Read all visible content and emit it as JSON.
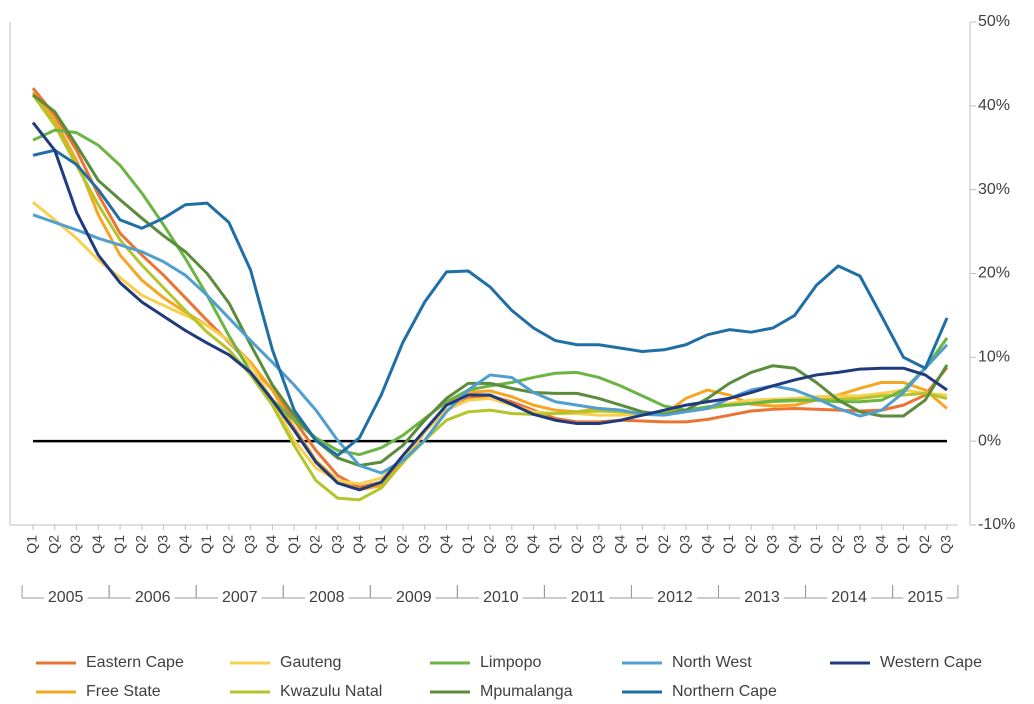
{
  "chart_data": {
    "type": "line",
    "categories": [
      "Q1",
      "Q2",
      "Q3",
      "Q4",
      "Q1",
      "Q2",
      "Q3",
      "Q4",
      "Q1",
      "Q2",
      "Q3",
      "Q4",
      "Q1",
      "Q2",
      "Q3",
      "Q4",
      "Q1",
      "Q2",
      "Q3",
      "Q4",
      "Q1",
      "Q2",
      "Q3",
      "Q4",
      "Q1",
      "Q2",
      "Q3",
      "Q4",
      "Q1",
      "Q2",
      "Q3",
      "Q4",
      "Q1",
      "Q2",
      "Q3",
      "Q4",
      "Q1",
      "Q2",
      "Q3",
      "Q4",
      "Q1",
      "Q2",
      "Q3"
    ],
    "groups": [
      "2005",
      "2006",
      "2007",
      "2008",
      "2009",
      "2010",
      "2011",
      "2012",
      "2013",
      "2014",
      "2015"
    ],
    "ylim": [
      -10,
      50
    ],
    "yticks": [
      {
        "value": -10,
        "label": "-10%"
      },
      {
        "value": 0,
        "label": "0%"
      },
      {
        "value": 10,
        "label": "10%"
      },
      {
        "value": 20,
        "label": "20%"
      },
      {
        "value": 30,
        "label": "30%"
      },
      {
        "value": 40,
        "label": "40%"
      },
      {
        "value": 50,
        "label": "50%"
      }
    ],
    "zero_line": true,
    "series": [
      {
        "name": "Eastern Cape",
        "color": "#ec7433",
        "values": [
          42.1,
          38.9,
          34.7,
          29.4,
          24.8,
          22.2,
          19.8,
          17.1,
          14.4,
          11.8,
          9.1,
          6.1,
          2.5,
          -1.1,
          -4.1,
          -5.5,
          -4.9,
          -2.3,
          1.1,
          3.7,
          5.1,
          5.4,
          4.7,
          3.7,
          2.7,
          2.3,
          2.3,
          2.5,
          2.4,
          2.3,
          2.3,
          2.6,
          3.1,
          3.6,
          3.8,
          3.9,
          3.8,
          3.7,
          3.6,
          3.7,
          4.3,
          5.5,
          8.8
        ]
      },
      {
        "name": "Free State",
        "color": "#f5a623",
        "values": [
          41.6,
          38.3,
          33.5,
          27,
          22.2,
          19.2,
          17.1,
          15.4,
          13.8,
          12,
          9.4,
          6.1,
          1.6,
          -2.3,
          -4.7,
          -5.8,
          -5.3,
          -2.6,
          1.1,
          4.3,
          5.8,
          6,
          5.3,
          4.3,
          3.7,
          3.5,
          3.9,
          3.7,
          3.2,
          3.2,
          5.1,
          6.1,
          5.5,
          4.4,
          4.2,
          4.3,
          4.9,
          5.5,
          6.3,
          7,
          7,
          6.1,
          3.9
        ]
      },
      {
        "name": "Gauteng",
        "color": "#f8cf4f",
        "values": [
          28.5,
          26.4,
          24.2,
          21.6,
          19.5,
          17.4,
          16.2,
          15,
          13.8,
          12,
          9.1,
          4.9,
          0.1,
          -3.2,
          -4.7,
          -5.1,
          -4.4,
          -2,
          1.1,
          3.7,
          4.9,
          5.1,
          4.3,
          3.5,
          3.3,
          3.3,
          3.1,
          3.1,
          3.2,
          3.5,
          3.7,
          4.1,
          4.5,
          4.9,
          5,
          5.1,
          5.3,
          5.4,
          5.4,
          5.7,
          6.1,
          5.7,
          5.5
        ]
      },
      {
        "name": "Kwazulu Natal",
        "color": "#b3c52a",
        "values": [
          41.3,
          37.7,
          32.9,
          28.2,
          24,
          21,
          18.3,
          15.6,
          13,
          10.9,
          7.9,
          4.3,
          -0.5,
          -4.7,
          -6.8,
          -7,
          -5.6,
          -2.5,
          0.1,
          2.5,
          3.5,
          3.7,
          3.3,
          3.2,
          3.3,
          3.5,
          3.6,
          3.5,
          3.3,
          3.5,
          3.7,
          3.9,
          4.3,
          4.5,
          4.7,
          4.8,
          4.9,
          5,
          5.1,
          5.4,
          5.5,
          5.7,
          5.1
        ]
      },
      {
        "name": "Limpopo",
        "color": "#6cb443",
        "values": [
          35.9,
          37.1,
          36.8,
          35.3,
          32.9,
          29.6,
          25.8,
          21.8,
          17.4,
          12.6,
          8.2,
          4.9,
          2.5,
          0.4,
          -1.1,
          -1.6,
          -0.8,
          0.7,
          2.7,
          4.7,
          6.1,
          6.6,
          7,
          7.6,
          8.1,
          8.2,
          7.6,
          6.6,
          5.4,
          4.2,
          3.7,
          4.1,
          4.3,
          4.5,
          4.8,
          4.9,
          4.9,
          4.7,
          4.7,
          4.9,
          6.1,
          8.7,
          12.3
        ]
      },
      {
        "name": "Mpumalanga",
        "color": "#5b8c3c",
        "values": [
          41.3,
          39.3,
          35.3,
          31.1,
          28.8,
          26.6,
          24.5,
          22.6,
          20,
          16.5,
          11.5,
          6.7,
          3.1,
          0.1,
          -2,
          -2.9,
          -2.5,
          -0.5,
          2.5,
          5.1,
          6.9,
          6.9,
          6.3,
          5.8,
          5.7,
          5.7,
          5.1,
          4.3,
          3.5,
          3.2,
          3.7,
          5.1,
          6.9,
          8.2,
          9,
          8.7,
          7,
          4.9,
          3.5,
          3,
          3,
          4.9,
          9.1
        ]
      },
      {
        "name": "North West",
        "color": "#509fcf",
        "values": [
          27,
          26.1,
          25.2,
          24.2,
          23.4,
          22.6,
          21.4,
          19.8,
          17.4,
          14.7,
          12,
          9.4,
          6.7,
          3.7,
          0.1,
          -2.9,
          -3.8,
          -2.3,
          0.1,
          3.5,
          6.1,
          7.9,
          7.6,
          5.8,
          4.7,
          4.3,
          3.9,
          3.7,
          3.2,
          3.1,
          3.5,
          3.9,
          5.1,
          6.1,
          6.6,
          6.1,
          5.1,
          3.9,
          3,
          3.7,
          5.8,
          8.7,
          11.5
        ]
      },
      {
        "name": "Northern Cape",
        "color": "#1f6fa6",
        "values": [
          34.1,
          34.7,
          33,
          30,
          26.4,
          25.4,
          26.6,
          28.2,
          28.4,
          26.1,
          20.4,
          10.9,
          3.7,
          0.1,
          -1.7,
          0.4,
          5.5,
          11.8,
          16.6,
          20.2,
          20.3,
          18.4,
          15.6,
          13.5,
          12,
          11.5,
          11.5,
          11.1,
          10.7,
          10.9,
          11.5,
          12.7,
          13.3,
          13,
          13.5,
          15,
          18.6,
          20.9,
          19.7,
          14.9,
          10,
          8.7,
          14.7
        ]
      },
      {
        "name": "Western Cape",
        "color": "#1f3b7d",
        "values": [
          38,
          34.7,
          27.3,
          22.2,
          18.9,
          16.6,
          14.9,
          13.2,
          11.7,
          10.3,
          8.2,
          4.9,
          1.3,
          -2.5,
          -5,
          -5.8,
          -4.9,
          -1.7,
          1.3,
          4.3,
          5.5,
          5.5,
          4.4,
          3.2,
          2.5,
          2.1,
          2.1,
          2.5,
          3.1,
          3.7,
          4.3,
          4.7,
          5.1,
          5.8,
          6.6,
          7.3,
          7.9,
          8.2,
          8.6,
          8.7,
          8.7,
          7.9,
          6.1
        ]
      }
    ]
  }
}
